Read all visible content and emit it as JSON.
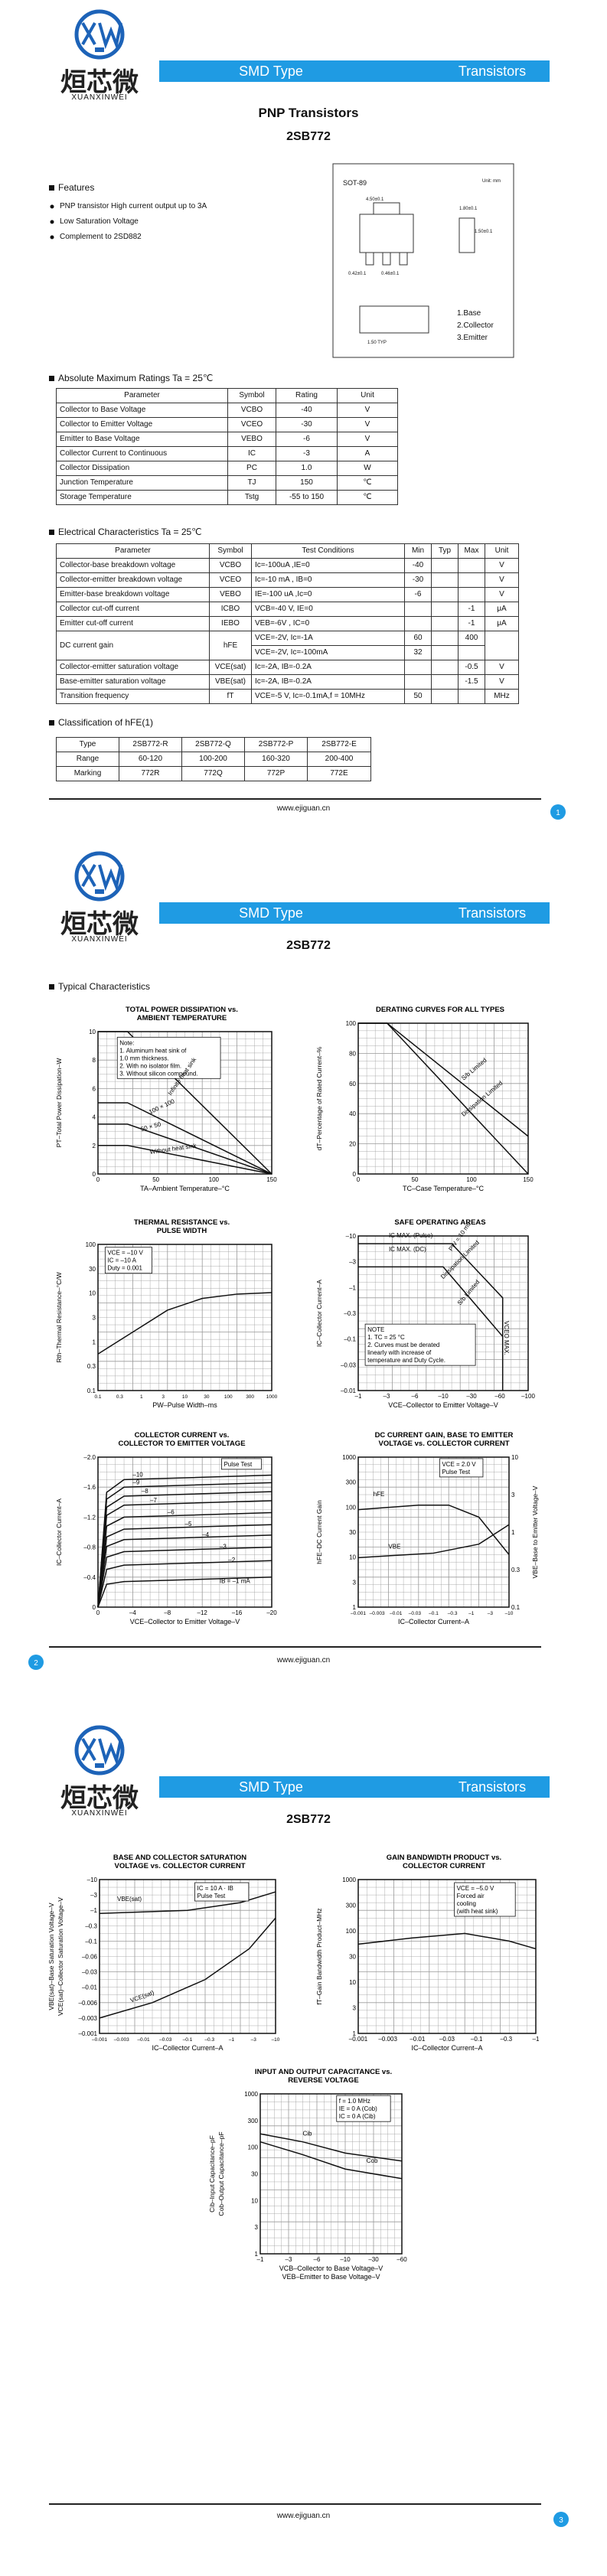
{
  "header": {
    "brand_cn": "烜芯微",
    "brand_en": "XUANXINWEI",
    "bar_left": "SMD Type",
    "bar_right": "Transistors",
    "part": "2SB772"
  },
  "page1": {
    "subtitle": "PNP Transistors",
    "features": {
      "heading": "Features",
      "items": [
        "PNP transistor High current output up to 3A",
        "Low Saturation Voltage",
        "Complement to 2SD882"
      ]
    },
    "package": {
      "name": "SOT-89",
      "unit": "Unit: mm",
      "dims": [
        "4.50±0.1",
        "1.80±0.1",
        "1.50±0.1",
        "0.42±0.1",
        "0.46±0.1",
        "1.50 TYP"
      ],
      "pins": [
        "1.Base",
        "2.Collector",
        "3.Emitter"
      ]
    },
    "abs_max": {
      "heading": "Absolute Maximum Ratings Ta = 25℃",
      "header": [
        "Parameter",
        "Symbol",
        "Rating",
        "Unit"
      ],
      "rows": [
        [
          "Collector to Base Voltage",
          "VCBO",
          "-40",
          "V"
        ],
        [
          "Collector to Emitter Voltage",
          "VCEO",
          "-30",
          "V"
        ],
        [
          "Emitter to Base Voltage",
          "VEBO",
          "-6",
          "V"
        ],
        [
          "Collector Current to Continuous",
          "IC",
          "-3",
          "A"
        ],
        [
          "Collector Dissipation",
          "PC",
          "1.0",
          "W"
        ],
        [
          "Junction Temperature",
          "TJ",
          "150",
          "℃"
        ],
        [
          "Storage Temperature",
          "Tstg",
          "-55 to 150",
          "℃"
        ]
      ]
    },
    "electrical": {
      "heading": "Electrical Characteristics Ta = 25℃",
      "header": [
        "Parameter",
        "Symbol",
        "Test Conditions",
        "Min",
        "Typ",
        "Max",
        "Unit"
      ],
      "rows": [
        [
          "Collector-base breakdown voltage",
          "VCBO",
          "Ic=-100uA ,IE=0",
          "-40",
          null,
          null,
          "V"
        ],
        [
          "Collector-emitter breakdown voltage",
          "VCEO",
          "Ic=-10 mA , IB=0",
          "-30",
          null,
          null,
          "V"
        ],
        [
          "Emitter-base breakdown voltage",
          "VEBO",
          "IE=-100 uA ,Ic=0",
          "-6",
          null,
          null,
          "V"
        ],
        [
          "Collector cut-off current",
          "ICBO",
          "VCB=-40 V, IE=0",
          null,
          null,
          "-1",
          "μA"
        ],
        [
          "Emitter cut-off current",
          "IEBO",
          "VEB=-6V , IC=0",
          null,
          null,
          "-1",
          "μA"
        ],
        [
          "DC current gain",
          "hFE",
          "VCE=-2V, Ic=-1A",
          "60",
          null,
          "400",
          null
        ],
        [
          null,
          null,
          "VCE=-2V, Ic=-100mA",
          "32",
          null,
          null,
          null
        ],
        [
          "Collector-emitter saturation voltage",
          "VCE(sat)",
          "Ic=-2A, IB=-0.2A",
          null,
          null,
          "-0.5",
          "V"
        ],
        [
          "Base-emitter saturation voltage",
          "VBE(sat)",
          "Ic=-2A, IB=-0.2A",
          null,
          null,
          "-1.5",
          "V"
        ],
        [
          "Transition frequency",
          "fT",
          "VCE=-5 V, Ic=-0.1mA,f = 10MHz",
          "50",
          null,
          null,
          "MHz"
        ]
      ]
    },
    "classification": {
      "heading": "Classification of hFE(1)",
      "rows": [
        [
          "Type",
          "2SB772-R",
          "2SB772-Q",
          "2SB772-P",
          "2SB772-E"
        ],
        [
          "Range",
          "60-120",
          "100-200",
          "160-320",
          "200-400"
        ],
        [
          "Marking",
          "772R",
          "772Q",
          "772P",
          "772E"
        ]
      ]
    }
  },
  "typical_heading": "Typical Characteristics",
  "graphs": [
    {
      "title": [
        "TOTAL POWER DISSIPATION vs.",
        "AMBIENT TEMPERATURE"
      ],
      "ylabel": [
        "PT–Total Power Dissipation–W"
      ],
      "xlabel": [
        "TA–Ambient Temperature–°C"
      ],
      "yticks": [
        "0",
        "2",
        "4",
        "6",
        "8",
        "10"
      ],
      "xticks": [
        "0",
        "50",
        "100",
        "150"
      ],
      "notes": [
        "Note:",
        "1. Aluminum heat sink of",
        "   1.0 mm thickness.",
        "2. With no isolator film.",
        "3. Without silicon compound."
      ],
      "labels": [
        "Infinite heat sink",
        "100 × 100",
        "50 × 50",
        "Without heat sink"
      ]
    },
    {
      "title": [
        "DERATING CURVES FOR ALL TYPES"
      ],
      "ylabel": [
        "dT–Percentage of Rated Current–%"
      ],
      "xlabel": [
        "TC–Case Temperature–°C"
      ],
      "yticks": [
        "0",
        "20",
        "40",
        "60",
        "80",
        "100"
      ],
      "xticks": [
        "0",
        "50",
        "100",
        "150"
      ],
      "notes": [],
      "labels": [
        "S/b Limited",
        "Dissipation Limited"
      ]
    },
    {
      "title": [
        "THERMAL RESISTANCE vs.",
        "PULSE WIDTH"
      ],
      "ylabel": [
        "Rth–Thermal Resistance–°C/W"
      ],
      "xlabel": [
        "PW–Pulse Width–ms"
      ],
      "yticks": [
        "0.1",
        "0.3",
        "1",
        "3",
        "10",
        "30",
        "100"
      ],
      "xticks": [
        "0.1",
        "0.3",
        "1",
        "3",
        "10",
        "30",
        "100",
        "300",
        "1000"
      ],
      "notes": [
        "VCE = –10 V",
        "IC = –10 A",
        "Duty = 0.001"
      ],
      "labels": []
    },
    {
      "title": [
        "SAFE OPERATING AREAS"
      ],
      "ylabel": [
        "IC–Collector Current–A"
      ],
      "xlabel": [
        "VCE–Collector to Emitter Voltage–V"
      ],
      "yticks": [
        "–0.01",
        "–0.03",
        "–0.1",
        "–0.3",
        "–1",
        "–3",
        "–10"
      ],
      "xticks": [
        "–1",
        "–3",
        "–6",
        "–10",
        "–30",
        "–60",
        "–100"
      ],
      "notes": [
        "NOTE",
        "1. TC = 25 °C",
        "2. Curves must be derated",
        "   linearly with increase of",
        "   temperature and Duty Cycle."
      ],
      "labels": [
        "IC MAX. (Pulse)",
        "IC MAX. (DC)",
        "PW = 10 ms",
        "Dissipation Limited",
        "S/b Limited",
        "VCEO MAX."
      ]
    },
    {
      "title": [
        "COLLECTOR CURRENT vs.",
        "COLLECTOR TO EMITTER VOLTAGE"
      ],
      "ylabel": [
        "IC–Collector Current–A"
      ],
      "xlabel": [
        "VCE–Collector to Emitter Voltage–V"
      ],
      "yticks": [
        "0",
        "–0.4",
        "–0.8",
        "–1.2",
        "–1.6",
        "–2.0"
      ],
      "xticks": [
        "0",
        "–4",
        "–8",
        "–12",
        "–16",
        "–20"
      ],
      "notes": [
        "Pulse Test"
      ],
      "labels": [
        "–10",
        "–9",
        "–8",
        "–7",
        "–6",
        "–5",
        "–4",
        "–3",
        "–2",
        "IB = –1 mA"
      ]
    },
    {
      "title": [
        "DC CURRENT GAIN, BASE TO EMITTER",
        "VOLTAGE vs. COLLECTOR CURRENT"
      ],
      "ylabel": [
        "hFE–DC Current Gain"
      ],
      "y2label": [
        "VBE–Base to Emitter Voltage–V"
      ],
      "xlabel": [
        "IC–Collector Current–A"
      ],
      "yticks": [
        "1",
        "3",
        "10",
        "30",
        "100",
        "300",
        "1000"
      ],
      "y2ticks": [
        "0.1",
        "0.3",
        "1",
        "3",
        "10"
      ],
      "xticks": [
        "–0.001",
        "–0.003",
        "–0.01",
        "–0.03",
        "–0.1",
        "–0.3",
        "–1",
        "–3",
        "–10"
      ],
      "notes": [
        "VCE = 2.0 V",
        "Pulse Test"
      ],
      "labels": [
        "hFE",
        "VBE"
      ]
    },
    {
      "title": [
        "BASE AND COLLECTOR SATURATION",
        "VOLTAGE vs. COLLECTOR CURRENT"
      ],
      "ylabel": [
        "VBE(sat)–Base Saturation Voltage–V",
        "VCE(sat)–Collector Saturation Voltage–V"
      ],
      "xlabel": [
        "IC–Collector Current–A"
      ],
      "yticks": [
        "–0.001",
        "–0.003",
        "–0.006",
        "–0.01",
        "–0.03",
        "–0.06",
        "–0.1",
        "–0.3",
        "–1",
        "–3",
        "–10"
      ],
      "xticks": [
        "–0.001",
        "–0.003",
        "–0.01",
        "–0.03",
        "–0.1",
        "–0.3",
        "–1",
        "–3",
        "–10"
      ],
      "notes": [
        "IC = 10 A · IB",
        "Pulse Test"
      ],
      "labels": [
        "VBE(sat)",
        "VCE(sat)"
      ]
    },
    {
      "title": [
        "GAIN BANDWIDTH PRODUCT vs.",
        "COLLECTOR CURRENT"
      ],
      "ylabel": [
        "fT–Gain Bandwidth Product–MHz"
      ],
      "xlabel": [
        "IC–Collector Current–A"
      ],
      "yticks": [
        "1",
        "3",
        "10",
        "30",
        "100",
        "300",
        "1000"
      ],
      "xticks": [
        "–0.001",
        "–0.003",
        "–0.01",
        "–0.03",
        "–0.1",
        "–0.3",
        "–1"
      ],
      "notes": [
        "VCE = –5.0 V",
        "Forced air",
        "cooling",
        "(with heat sink)"
      ],
      "labels": []
    },
    {
      "title": [
        "INPUT AND OUTPUT CAPACITANCE vs.",
        "REVERSE VOLTAGE"
      ],
      "ylabel": [
        "Cib–Input Capacitance–pF",
        "Cob–Output Capacitance–pF"
      ],
      "xlabel": [
        "VCB–Collector to Base Voltage–V",
        "VEB–Emitter to Base Voltage–V"
      ],
      "yticks": [
        "1",
        "3",
        "10",
        "30",
        "100",
        "300",
        "1000"
      ],
      "xticks": [
        "–1",
        "–3",
        "–6",
        "–10",
        "–30",
        "–60"
      ],
      "notes": [
        "f = 1.0 MHz",
        "IE = 0 A (Cob)",
        "IC = 0 A (Cib)"
      ],
      "labels": [
        "Cib",
        "Cob"
      ]
    }
  ],
  "footer": {
    "url": "www.ejiguan.cn",
    "page_numbers": [
      "1",
      "2",
      "3"
    ]
  }
}
